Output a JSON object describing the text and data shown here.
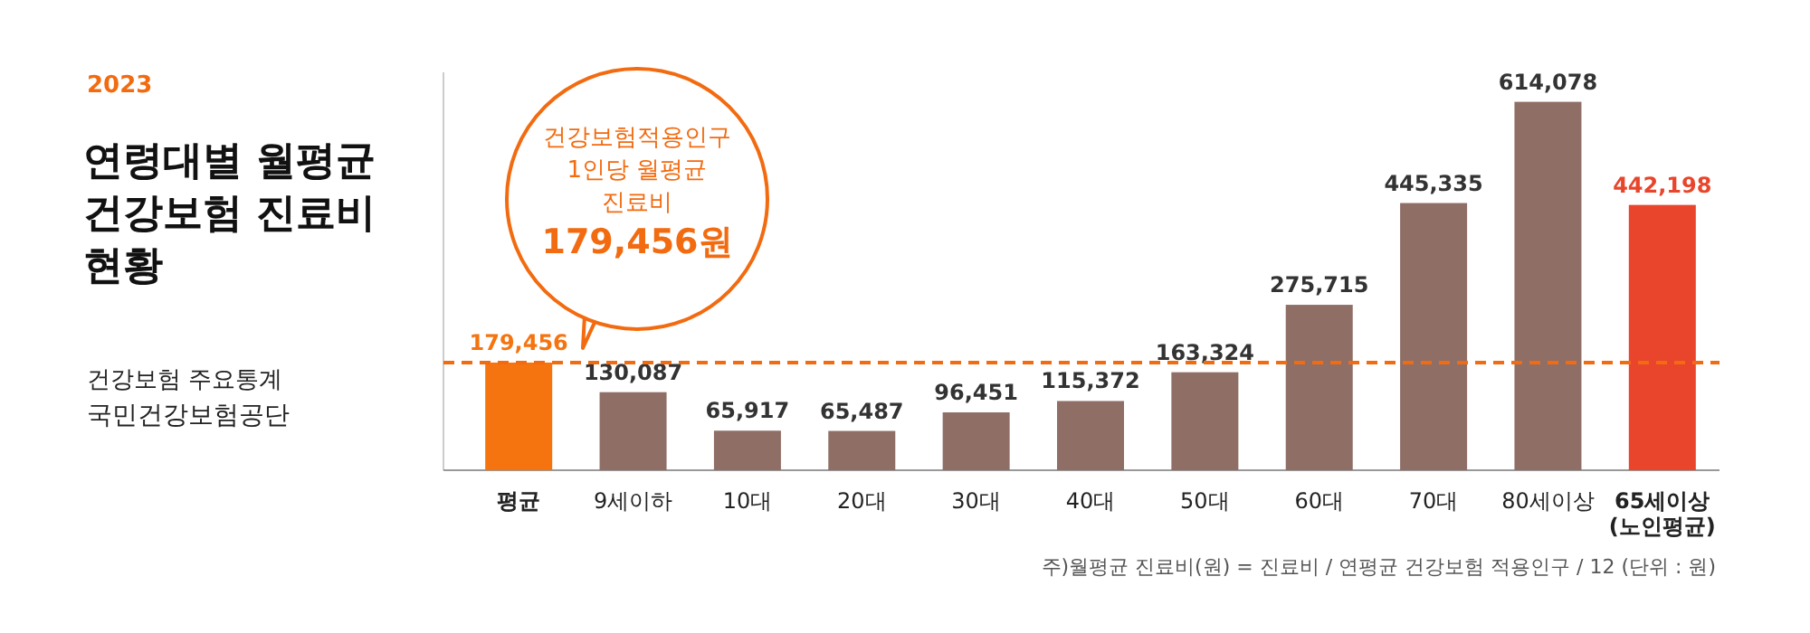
{
  "chart_data": {
    "type": "bar",
    "subtitle": "2023",
    "title": "연령대별 월평균\n건강보험 진료비\n현황",
    "categories": [
      "평균",
      "9세이하",
      "10대",
      "20대",
      "30대",
      "40대",
      "50대",
      "60대",
      "70대",
      "80세이상",
      "65세이상\n(노인평균)"
    ],
    "values": [
      179456,
      130087,
      65917,
      65487,
      96451,
      115372,
      163324,
      275715,
      445335,
      614078,
      442198
    ],
    "value_labels": [
      "179,456",
      "130,087",
      "65,917",
      "65,487",
      "96,451",
      "115,372",
      "163,324",
      "275,715",
      "445,335",
      "614,078",
      "442,198"
    ],
    "colors": [
      "#f5740f",
      "#8f6e66",
      "#8f6e66",
      "#8f6e66",
      "#8f6e66",
      "#8f6e66",
      "#8f6e66",
      "#8f6e66",
      "#8f6e66",
      "#8f6e66",
      "#e8452c"
    ],
    "tick_labels": "x",
    "ref_lines": [
      {
        "axis": "y",
        "value": 179456,
        "color": "#f26b10",
        "line_style": "dashed",
        "label": "건강보험적용인구\n1인당 월평균\n진료비\n179,456원"
      }
    ],
    "annotations": [
      "건강보험 주요통계",
      "국민건강보험공단",
      "주)월평균 진료비(원) = 진료비 / 연평균 건강보험 적용인구 / 12  (단위 : 원)"
    ]
  }
}
